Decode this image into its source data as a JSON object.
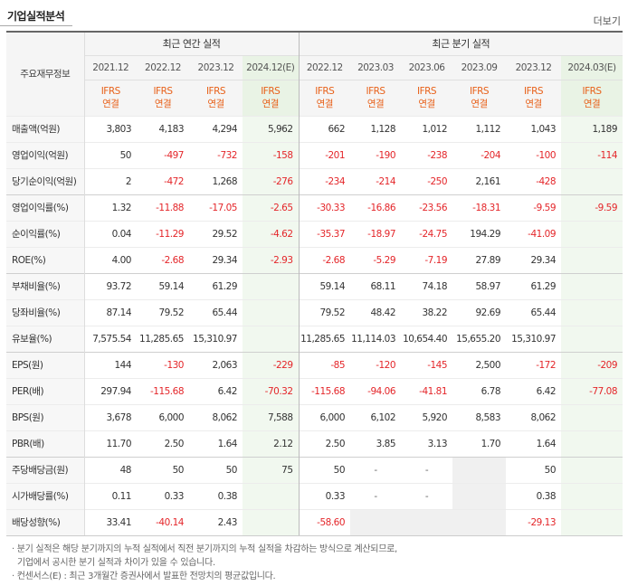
{
  "header": {
    "title": "기업실적분석",
    "more_label": "더보기"
  },
  "table": {
    "row_label_header": "주요재무정보",
    "group_annual": "최근 연간 실적",
    "group_quarter": "최근 분기 실적",
    "annual_periods": [
      "2021.12",
      "2022.12",
      "2023.12",
      "2024.12(E)"
    ],
    "quarter_periods": [
      "2022.12",
      "2023.03",
      "2023.06",
      "2023.09",
      "2023.12",
      "2024.03(E)"
    ],
    "standard_line1": "IFRS",
    "standard_line2": "연결",
    "rows": [
      {
        "label": "매출액(억원)",
        "annual": [
          "3,803",
          "4,183",
          "4,294",
          "5,962"
        ],
        "quarter": [
          "662",
          "1,128",
          "1,012",
          "1,112",
          "1,043",
          "1,189"
        ]
      },
      {
        "label": "영업이익(억원)",
        "annual": [
          "50",
          "-497",
          "-732",
          "-158"
        ],
        "quarter": [
          "-201",
          "-190",
          "-238",
          "-204",
          "-100",
          "-114"
        ]
      },
      {
        "label": "당기순이익(억원)",
        "annual": [
          "2",
          "-472",
          "1,268",
          "-276"
        ],
        "quarter": [
          "-234",
          "-214",
          "-250",
          "2,161",
          "-428",
          ""
        ]
      },
      {
        "label": "영업이익률(%)",
        "annual": [
          "1.32",
          "-11.88",
          "-17.05",
          "-2.65"
        ],
        "quarter": [
          "-30.33",
          "-16.86",
          "-23.56",
          "-18.31",
          "-9.59",
          "-9.59"
        ]
      },
      {
        "label": "순이익률(%)",
        "annual": [
          "0.04",
          "-11.29",
          "29.52",
          "-4.62"
        ],
        "quarter": [
          "-35.37",
          "-18.97",
          "-24.75",
          "194.29",
          "-41.09",
          ""
        ]
      },
      {
        "label": "ROE(%)",
        "annual": [
          "4.00",
          "-2.68",
          "29.34",
          "-2.93"
        ],
        "quarter": [
          "-2.68",
          "-5.29",
          "-7.19",
          "27.89",
          "29.34",
          ""
        ]
      },
      {
        "label": "부채비율(%)",
        "annual": [
          "93.72",
          "59.14",
          "61.29",
          ""
        ],
        "quarter": [
          "59.14",
          "68.11",
          "74.18",
          "58.97",
          "61.29",
          ""
        ]
      },
      {
        "label": "당좌비율(%)",
        "annual": [
          "87.14",
          "79.52",
          "65.44",
          ""
        ],
        "quarter": [
          "79.52",
          "48.42",
          "38.22",
          "92.69",
          "65.44",
          ""
        ]
      },
      {
        "label": "유보율(%)",
        "annual": [
          "7,575.54",
          "11,285.65",
          "15,310.97",
          ""
        ],
        "quarter": [
          "11,285.65",
          "11,114.03",
          "10,654.40",
          "15,655.20",
          "15,310.97",
          ""
        ]
      },
      {
        "label": "EPS(원)",
        "annual": [
          "144",
          "-130",
          "2,063",
          "-229"
        ],
        "quarter": [
          "-85",
          "-120",
          "-145",
          "2,500",
          "-172",
          "-209"
        ]
      },
      {
        "label": "PER(배)",
        "annual": [
          "297.94",
          "-115.68",
          "6.42",
          "-70.32"
        ],
        "quarter": [
          "-115.68",
          "-94.06",
          "-41.81",
          "6.78",
          "6.42",
          "-77.08"
        ]
      },
      {
        "label": "BPS(원)",
        "annual": [
          "3,678",
          "6,000",
          "8,062",
          "7,588"
        ],
        "quarter": [
          "6,000",
          "6,102",
          "5,920",
          "8,583",
          "8,062",
          ""
        ]
      },
      {
        "label": "PBR(배)",
        "annual": [
          "11.70",
          "2.50",
          "1.64",
          "2.12"
        ],
        "quarter": [
          "2.50",
          "3.85",
          "3.13",
          "1.70",
          "1.64",
          ""
        ]
      },
      {
        "label": "주당배당금(원)",
        "annual": [
          "48",
          "50",
          "50",
          "75"
        ],
        "quarter": [
          "50",
          "-",
          "-",
          "",
          "50",
          ""
        ]
      },
      {
        "label": "시가배당률(%)",
        "annual": [
          "0.11",
          "0.33",
          "0.38",
          ""
        ],
        "quarter": [
          "0.33",
          "-",
          "-",
          "",
          "0.38",
          ""
        ]
      },
      {
        "label": "배당성향(%)",
        "annual": [
          "33.41",
          "-40.14",
          "2.43",
          ""
        ],
        "quarter": [
          "-58.60",
          "",
          "",
          "",
          "-29.13",
          ""
        ]
      }
    ]
  },
  "notes": [
    "· 분기 실적은 해당 분기까지의 누적 실적에서 직전 분기까지의 누적 실적을 차감하는 방식으로 계산되므로,",
    "기업에서 공시한 분기 실적과 차이가 있을 수 있습니다.",
    "· 컨센서스(E) : 최근 3개월간 증권사에서 발표한 전망치의 평균값입니다."
  ],
  "colors": {
    "accent": "#e8611a",
    "negative": "#e4262a",
    "estimate_bg": "#f1f8ef"
  }
}
